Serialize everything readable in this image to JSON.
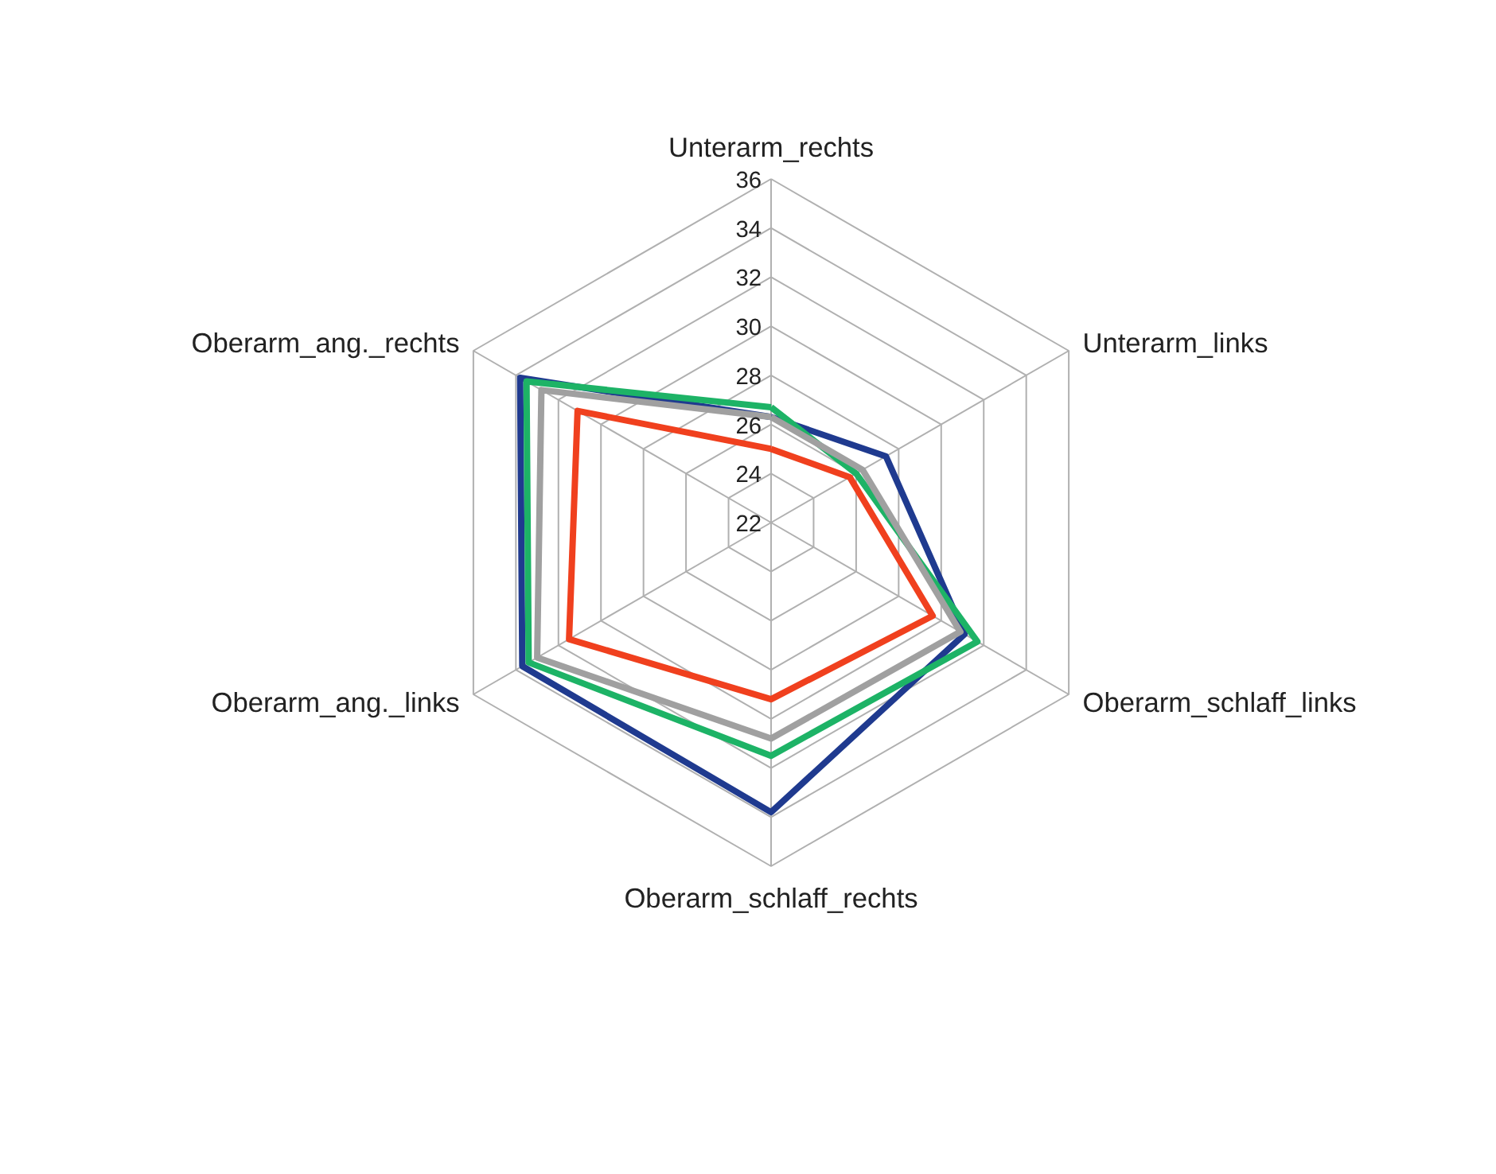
{
  "chart_data": {
    "type": "radar",
    "categories": [
      "Unterarm_rechts",
      "Unterarm_links",
      "Oberarm_schlaff_links",
      "Oberarm_schlaff_rechts",
      "Oberarm_ang._links",
      "Oberarm_ang._rechts"
    ],
    "series": [
      {
        "color": "#1f3a8f",
        "values": [
          26.3,
          27.4,
          31.1,
          33.8,
          33.7,
          33.8
        ]
      },
      {
        "color": "#1db366",
        "values": [
          26.7,
          26.0,
          31.7,
          31.5,
          33.4,
          33.5
        ]
      },
      {
        "color": "#a0a0a0",
        "values": [
          26.3,
          26.3,
          30.9,
          30.8,
          33.0,
          32.8
        ]
      },
      {
        "color": "#f0401e",
        "values": [
          25.0,
          25.7,
          29.6,
          29.2,
          31.5,
          31.1
        ]
      }
    ],
    "ylim": [
      22,
      36
    ],
    "yticks": [
      22,
      24,
      26,
      28,
      30,
      32,
      34,
      36
    ],
    "grid": true
  }
}
